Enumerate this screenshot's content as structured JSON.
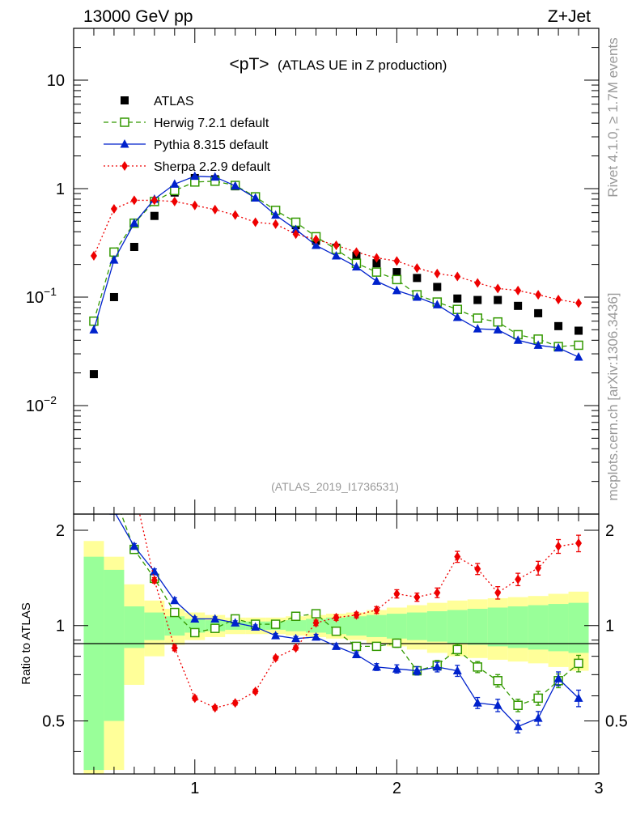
{
  "header": {
    "left": "13000 GeV pp",
    "right": "Z+Jet",
    "side_top": "Rivet 4.1.0, ≥ 1.7M events",
    "side_bottom": "mcplots.cern.ch [arXiv:1306.3436]"
  },
  "chart_data": {
    "type": "line",
    "title_main": "<pT>",
    "title_sub": "(ATLAS UE in Z production)",
    "analysis_id": "(ATLAS_2019_I1736531)",
    "ylabel_ratio": "Ratio to ATLAS",
    "xlim": [
      0.4,
      3.0
    ],
    "ylim_main": [
      0.001,
      30
    ],
    "ylim_ratio": [
      0.34,
      2.25
    ],
    "x_ticks": [
      {
        "v": 1,
        "label": "1"
      },
      {
        "v": 2,
        "label": "2"
      },
      {
        "v": 3,
        "label": "3"
      }
    ],
    "y_ticks_main": [
      {
        "v": 10,
        "base": "10",
        "exp": ""
      },
      {
        "v": 1,
        "base": "1",
        "exp": ""
      },
      {
        "v": 0.1,
        "base": "10",
        "exp": "−1"
      },
      {
        "v": 0.01,
        "base": "10",
        "exp": "−2"
      }
    ],
    "y_ticks_ratio": [
      {
        "v": 2,
        "label": "2"
      },
      {
        "v": 1,
        "label": "1"
      },
      {
        "v": 0.5,
        "label": "0.5"
      }
    ],
    "x": [
      0.5,
      0.6,
      0.7,
      0.8,
      0.9,
      1.0,
      1.1,
      1.2,
      1.3,
      1.4,
      1.5,
      1.6,
      1.7,
      1.8,
      1.9,
      2.0,
      2.1,
      2.2,
      2.3,
      2.4,
      2.5,
      2.6,
      2.7,
      2.8,
      2.9
    ],
    "series": [
      {
        "name": "ATLAS",
        "color": "#000000",
        "marker": "square-filled",
        "values": [
          0.0195,
          0.1,
          0.29,
          0.56,
          0.92,
          1.25,
          1.22,
          1.05,
          0.83,
          0.63,
          0.46,
          0.33,
          0.285,
          0.24,
          0.205,
          0.17,
          0.15,
          0.124,
          0.097,
          0.094,
          0.094,
          0.083,
          0.071,
          0.054,
          0.049
        ]
      },
      {
        "name": "Herwig 7.2.1 default",
        "color": "#339900",
        "marker": "square-open",
        "dash": "6,4",
        "values": [
          0.06,
          0.26,
          0.48,
          0.76,
          0.96,
          1.15,
          1.17,
          1.07,
          0.84,
          0.63,
          0.49,
          0.36,
          0.275,
          0.205,
          0.17,
          0.145,
          0.105,
          0.09,
          0.077,
          0.064,
          0.059,
          0.045,
          0.041,
          0.035,
          0.036
        ],
        "ratio": [
          3.1,
          2.6,
          1.74,
          1.41,
          1.1,
          0.95,
          0.98,
          1.05,
          1.01,
          1.01,
          1.07,
          1.09,
          0.96,
          0.86,
          0.86,
          0.88,
          0.72,
          0.75,
          0.84,
          0.74,
          0.67,
          0.56,
          0.59,
          0.67,
          0.76
        ]
      },
      {
        "name": "Pythia 8.315 default",
        "color": "#0022cc",
        "marker": "triangle-filled",
        "values": [
          0.05,
          0.22,
          0.48,
          0.8,
          1.1,
          1.3,
          1.28,
          1.06,
          0.82,
          0.57,
          0.42,
          0.3,
          0.24,
          0.19,
          0.14,
          0.115,
          0.1,
          0.085,
          0.065,
          0.051,
          0.05,
          0.04,
          0.036,
          0.034,
          0.028
        ],
        "ratio": [
          2.8,
          2.3,
          1.78,
          1.48,
          1.2,
          1.05,
          1.05,
          1.02,
          0.99,
          0.93,
          0.91,
          0.92,
          0.86,
          0.81,
          0.74,
          0.73,
          0.72,
          0.74,
          0.72,
          0.57,
          0.56,
          0.48,
          0.51,
          0.68,
          0.59
        ]
      },
      {
        "name": "Sherpa 2.2.9 default",
        "color": "#ee0000",
        "marker": "diamond-filled",
        "dash": "2,3",
        "values": [
          0.24,
          0.65,
          0.78,
          0.78,
          0.76,
          0.7,
          0.64,
          0.57,
          0.49,
          0.47,
          0.38,
          0.34,
          0.3,
          0.26,
          0.23,
          0.215,
          0.185,
          0.165,
          0.155,
          0.135,
          0.12,
          0.115,
          0.105,
          0.095,
          0.088
        ],
        "ratio": [
          12.3,
          6.5,
          2.69,
          1.39,
          0.85,
          0.59,
          0.55,
          0.57,
          0.62,
          0.79,
          0.85,
          1.02,
          1.06,
          1.08,
          1.12,
          1.26,
          1.23,
          1.27,
          1.65,
          1.51,
          1.27,
          1.4,
          1.52,
          1.78,
          1.82
        ]
      }
    ],
    "ratio_errors": [
      0.02,
      0.02,
      0.02,
      0.02,
      0.02,
      0.015,
      0.015,
      0.015,
      0.015,
      0.015,
      0.015,
      0.02,
      0.02,
      0.02,
      0.025,
      0.03,
      0.03,
      0.035,
      0.04,
      0.04,
      0.045,
      0.045,
      0.05,
      0.05,
      0.06
    ],
    "band_edges": [
      0.45,
      0.55,
      0.65,
      0.75,
      0.85,
      0.95,
      1.05,
      1.15,
      1.25,
      1.35,
      1.45,
      1.55,
      1.65,
      1.75,
      1.85,
      1.95,
      2.05,
      2.15,
      2.25,
      2.35,
      2.45,
      2.55,
      2.65,
      2.75,
      2.85,
      2.95
    ],
    "band_stat": [
      0.65,
      0.5,
      0.15,
      0.1,
      0.07,
      0.05,
      0.04,
      0.03,
      0.03,
      0.03,
      0.04,
      0.05,
      0.06,
      0.07,
      0.08,
      0.09,
      0.1,
      0.11,
      0.12,
      0.13,
      0.14,
      0.15,
      0.16,
      0.17,
      0.18
    ],
    "band_total": [
      0.85,
      0.65,
      0.35,
      0.2,
      0.13,
      0.1,
      0.08,
      0.06,
      0.06,
      0.06,
      0.07,
      0.08,
      0.09,
      0.1,
      0.12,
      0.14,
      0.16,
      0.18,
      0.2,
      0.21,
      0.22,
      0.23,
      0.24,
      0.26,
      0.28
    ],
    "band_colors": {
      "stat": "#99ff99",
      "total": "#ffff99"
    },
    "colors": {
      "frame": "#000000",
      "side_text": "#999999",
      "analysis_text": "#999999"
    }
  }
}
